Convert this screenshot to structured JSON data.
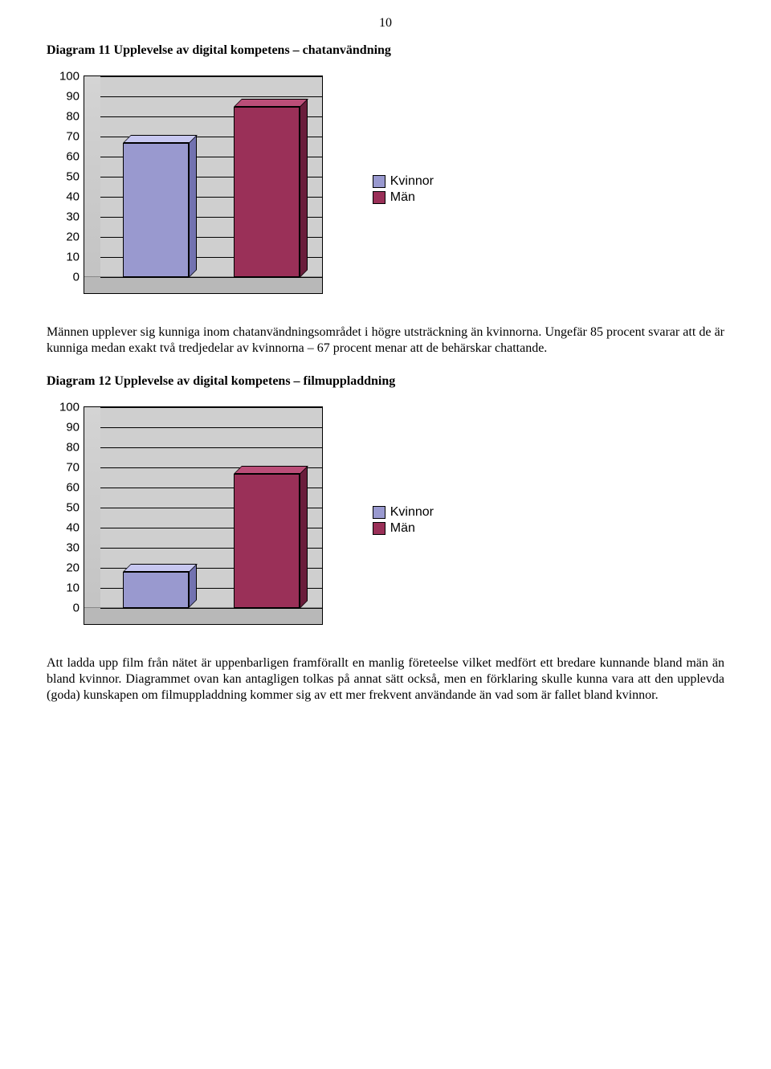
{
  "page_number": "10",
  "chart_a": {
    "type": "bar",
    "title": "Diagram 11 Upplevelse av digital kompetens – chatanvändning",
    "categories": [
      "Kvinnor",
      "Män"
    ],
    "values": [
      67,
      85
    ],
    "bar_colors": [
      "#9999cf",
      "#9a3058"
    ],
    "bar_top_colors": [
      "#c7c7f0",
      "#bb4e78"
    ],
    "bar_side_colors": [
      "#7272b0",
      "#6a1d3b"
    ],
    "ylim": [
      0,
      100
    ],
    "ytick_step": 10,
    "yticks": [
      "0",
      "10",
      "20",
      "30",
      "40",
      "50",
      "60",
      "70",
      "80",
      "90",
      "100"
    ],
    "background_color": "#cfcfcf",
    "grid_color": "#000000",
    "label_fontsize": 15,
    "legend_items": [
      "Kvinnor",
      "Män"
    ],
    "body_text": "Männen upplever sig kunniga inom chatanvändningsområdet i högre utsträckning än kvinnorna. Ungefär 85 procent svarar att de är kunniga medan exakt två tredjedelar av kvinnorna – 67 procent menar att de behärskar chattande."
  },
  "chart_b": {
    "type": "bar",
    "title": "Diagram 12 Upplevelse av digital kompetens – filmuppladdning",
    "categories": [
      "Kvinnor",
      "Män"
    ],
    "values": [
      18,
      67
    ],
    "bar_colors": [
      "#9999cf",
      "#9a3058"
    ],
    "bar_top_colors": [
      "#c7c7f0",
      "#bb4e78"
    ],
    "bar_side_colors": [
      "#7272b0",
      "#6a1d3b"
    ],
    "ylim": [
      0,
      100
    ],
    "ytick_step": 10,
    "yticks": [
      "0",
      "10",
      "20",
      "30",
      "40",
      "50",
      "60",
      "70",
      "80",
      "90",
      "100"
    ],
    "background_color": "#cfcfcf",
    "grid_color": "#000000",
    "label_fontsize": 15,
    "legend_items": [
      "Kvinnor",
      "Män"
    ],
    "body_text": "Att ladda upp film från nätet är uppenbarligen framförallt en manlig företeelse vilket medfört ett bredare kunnande bland män än bland kvinnor. Diagrammet ovan kan antagligen tolkas på annat sätt också, men en förklaring skulle kunna vara att den upplevda (goda) kunskapen om filmuppladdning kommer sig av ett mer frekvent användande än vad som är fallet bland kvinnor."
  }
}
